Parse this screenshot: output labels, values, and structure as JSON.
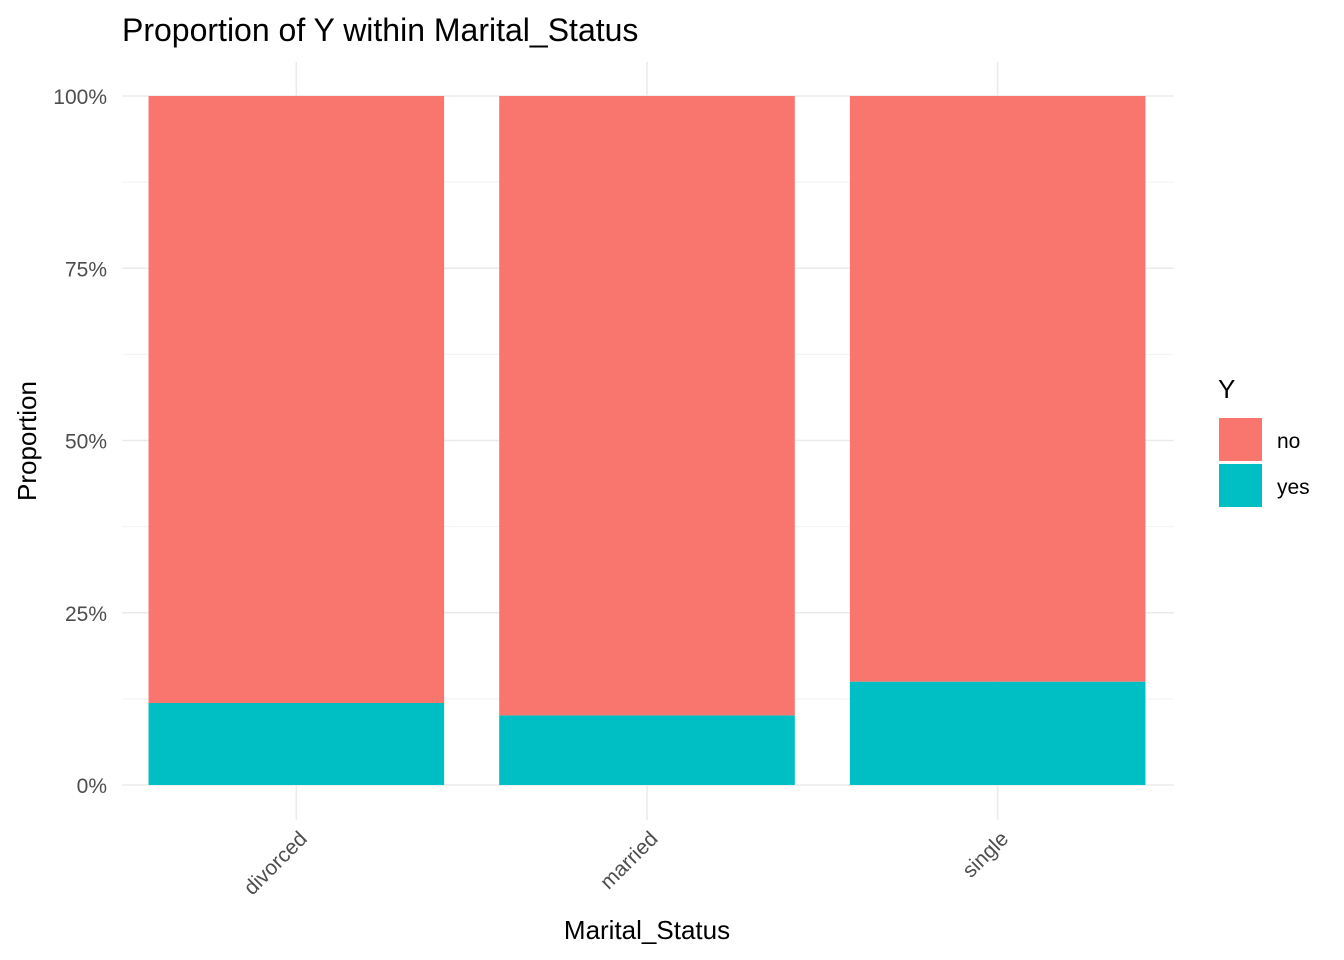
{
  "chart_data": {
    "type": "bar",
    "stacked": true,
    "title": "Proportion of Y within Marital_Status",
    "xlabel": "Marital_Status",
    "ylabel": "Proportion",
    "categories": [
      "divorced",
      "married",
      "single"
    ],
    "series": [
      {
        "name": "no",
        "values": [
          0.881,
          0.899,
          0.85
        ],
        "color": "#F8766D"
      },
      {
        "name": "yes",
        "values": [
          0.119,
          0.101,
          0.15
        ],
        "color": "#00BFC4"
      }
    ],
    "ylim": [
      0,
      1
    ],
    "yticks": [
      0,
      0.25,
      0.5,
      0.75,
      1
    ],
    "ytick_labels": [
      "0%",
      "25%",
      "50%",
      "75%",
      "100%"
    ],
    "grid": true,
    "legend": {
      "title": "Y",
      "position": "right",
      "labels": [
        "no",
        "yes"
      ]
    }
  }
}
